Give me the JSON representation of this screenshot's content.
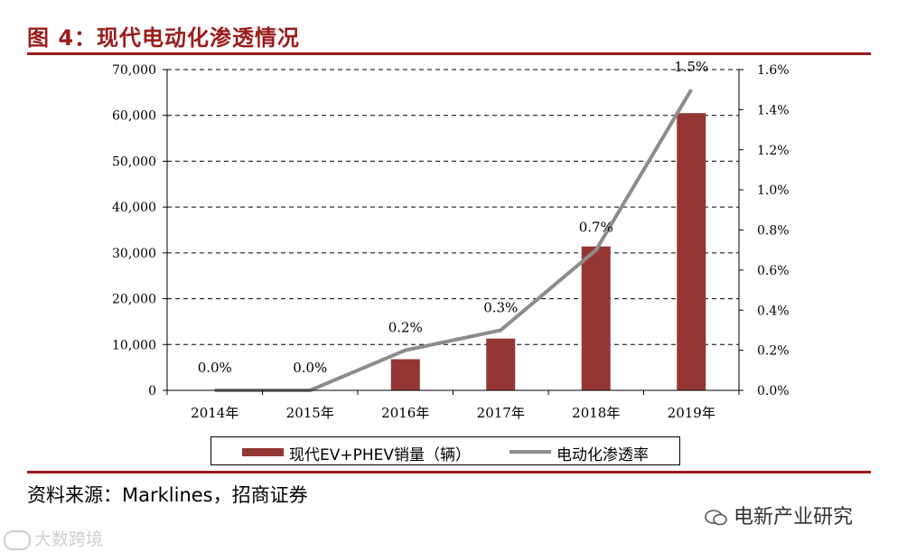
{
  "header": {
    "title": "图 4：现代电动化渗透情况"
  },
  "footer": {
    "source": "资料来源：Marklines，招商证券"
  },
  "watermarks": {
    "left": "大数跨境",
    "right": "电新产业研究"
  },
  "colors": {
    "bar": "#943634",
    "line": "#8c8c8c",
    "accent": "#9b1b1b"
  },
  "chart_data": {
    "type": "bar",
    "categories": [
      "2014年",
      "2015年",
      "2016年",
      "2017年",
      "2018年",
      "2019年"
    ],
    "series": [
      {
        "name": "现代EV+PHEV销量（辆）",
        "type": "bar",
        "axis": "left",
        "values": [
          0,
          0,
          6800,
          11300,
          31400,
          60500
        ]
      },
      {
        "name": "电动化渗透率",
        "type": "line",
        "axis": "right",
        "values": [
          0.0,
          0.0,
          0.2,
          0.3,
          0.7,
          1.5
        ],
        "data_labels": [
          "0.0%",
          "0.0%",
          "0.2%",
          "0.3%",
          "0.7%",
          "1.5%"
        ]
      }
    ],
    "left_axis": {
      "ylim": [
        0,
        70000
      ],
      "ticks": [
        "0",
        "10,000",
        "20,000",
        "30,000",
        "40,000",
        "50,000",
        "60,000",
        "70,000"
      ]
    },
    "right_axis": {
      "ylim": [
        0,
        1.6
      ],
      "ticks": [
        "0.0%",
        "0.2%",
        "0.4%",
        "0.6%",
        "0.8%",
        "1.0%",
        "1.2%",
        "1.4%",
        "1.6%"
      ]
    },
    "grid": true,
    "legend": "bottom"
  }
}
